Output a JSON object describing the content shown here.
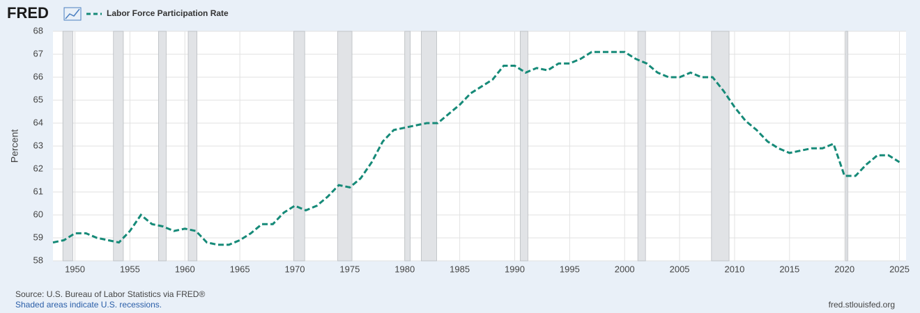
{
  "logo": "FRED",
  "chart_data": {
    "type": "line",
    "ylabel": "Percent",
    "x": [
      1948,
      1949,
      1950,
      1951,
      1952,
      1953,
      1954,
      1955,
      1956,
      1957,
      1958,
      1959,
      1960,
      1961,
      1962,
      1963,
      1964,
      1965,
      1966,
      1967,
      1968,
      1969,
      1970,
      1971,
      1972,
      1973,
      1974,
      1975,
      1976,
      1977,
      1978,
      1979,
      1980,
      1981,
      1982,
      1983,
      1984,
      1985,
      1986,
      1987,
      1988,
      1989,
      1990,
      1991,
      1992,
      1993,
      1994,
      1995,
      1996,
      1997,
      1998,
      1999,
      2000,
      2001,
      2002,
      2003,
      2004,
      2005,
      2006,
      2007,
      2008,
      2009,
      2010,
      2011,
      2012,
      2013,
      2014,
      2015,
      2016,
      2017,
      2018,
      2019,
      2020,
      2021,
      2022,
      2023,
      2024,
      2025
    ],
    "series": [
      {
        "name": "Labor Force Participation Rate",
        "color": "#168a78",
        "values": [
          58.8,
          58.9,
          59.2,
          59.2,
          59.0,
          58.9,
          58.8,
          59.3,
          60.0,
          59.6,
          59.5,
          59.3,
          59.4,
          59.3,
          58.8,
          58.7,
          58.7,
          58.9,
          59.2,
          59.6,
          59.6,
          60.1,
          60.4,
          60.2,
          60.4,
          60.8,
          61.3,
          61.2,
          61.6,
          62.3,
          63.2,
          63.7,
          63.8,
          63.9,
          64.0,
          64.0,
          64.4,
          64.8,
          65.3,
          65.6,
          65.9,
          66.5,
          66.5,
          66.2,
          66.4,
          66.3,
          66.6,
          66.6,
          66.8,
          67.1,
          67.1,
          67.1,
          67.1,
          66.8,
          66.6,
          66.2,
          66.0,
          66.0,
          66.2,
          66.0,
          66.0,
          65.4,
          64.7,
          64.1,
          63.7,
          63.2,
          62.9,
          62.7,
          62.8,
          62.9,
          62.9,
          63.1,
          61.7,
          61.7,
          62.2,
          62.6,
          62.6,
          62.3
        ]
      }
    ],
    "recessions": [
      [
        1948.9,
        1949.8
      ],
      [
        1953.5,
        1954.4
      ],
      [
        1957.6,
        1958.3
      ],
      [
        1960.3,
        1961.1
      ],
      [
        1969.9,
        1970.9
      ],
      [
        1973.9,
        1975.2
      ],
      [
        1980.0,
        1980.5
      ],
      [
        1981.5,
        1982.9
      ],
      [
        1990.5,
        1991.2
      ],
      [
        2001.2,
        2001.9
      ],
      [
        2007.9,
        2009.5
      ],
      [
        2020.1,
        2020.3
      ]
    ],
    "xlim": [
      1948,
      2025.6
    ],
    "xticks": [
      1950,
      1955,
      1960,
      1965,
      1970,
      1975,
      1980,
      1985,
      1990,
      1995,
      2000,
      2005,
      2010,
      2015,
      2020,
      2025
    ],
    "ylim": [
      58,
      68
    ],
    "yticks": [
      58,
      59,
      60,
      61,
      62,
      63,
      64,
      65,
      66,
      67,
      68
    ],
    "grid": true
  },
  "footer": {
    "source": "Source: U.S. Bureau of Labor Statistics via FRED®",
    "note": "Shaded areas indicate U.S. recessions.",
    "site": "fred.stlouisfed.org"
  }
}
